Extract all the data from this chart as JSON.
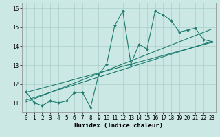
{
  "xlabel": "Humidex (Indice chaleur)",
  "bg_color": "#cce8e4",
  "grid_color": "#aacfca",
  "line_color": "#1a7a6e",
  "xlim": [
    -0.5,
    23.5
  ],
  "ylim": [
    10.5,
    16.3
  ],
  "xticks": [
    0,
    1,
    2,
    3,
    4,
    5,
    6,
    7,
    8,
    9,
    10,
    11,
    12,
    13,
    14,
    15,
    16,
    17,
    18,
    19,
    20,
    21,
    22,
    23
  ],
  "yticks": [
    11,
    12,
    13,
    14,
    15,
    16
  ],
  "data_x": [
    0,
    1,
    2,
    3,
    4,
    5,
    6,
    7,
    8,
    9,
    10,
    11,
    12,
    13,
    14,
    15,
    16,
    17,
    18,
    19,
    20,
    21,
    22,
    23
  ],
  "data_y": [
    11.6,
    11.0,
    10.85,
    11.1,
    11.0,
    11.1,
    11.55,
    11.55,
    10.75,
    12.5,
    13.05,
    15.1,
    15.85,
    13.05,
    14.1,
    13.85,
    15.85,
    15.65,
    15.35,
    14.75,
    14.85,
    14.95,
    14.35,
    14.25
  ],
  "line1_x": [
    0,
    23
  ],
  "line1_y": [
    11.15,
    14.25
  ],
  "line2_x": [
    0,
    23
  ],
  "line2_y": [
    11.55,
    14.2
  ],
  "line3_x": [
    0,
    23
  ],
  "line3_y": [
    11.05,
    14.9
  ]
}
